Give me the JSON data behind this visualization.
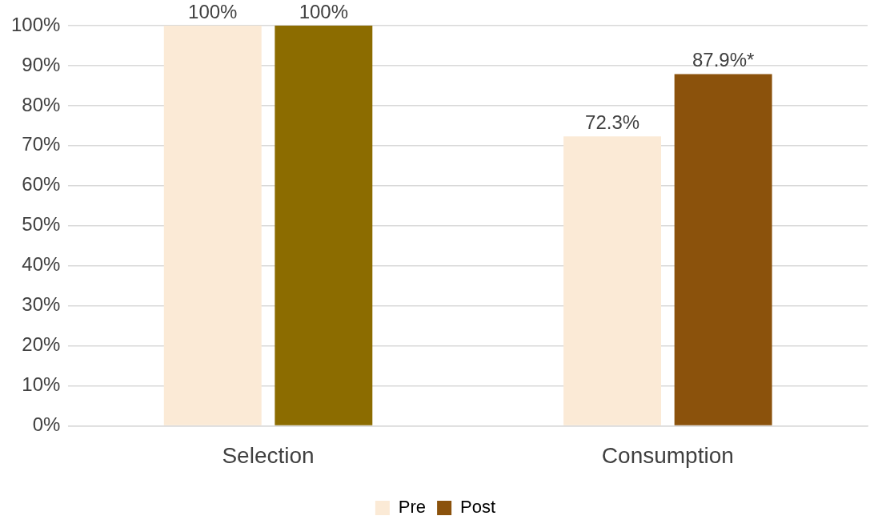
{
  "chart_data": {
    "type": "bar",
    "categories": [
      "Selection",
      "Consumption"
    ],
    "series": [
      {
        "name": "Pre",
        "color": "#fbead6",
        "values": [
          100,
          72.3
        ],
        "value_labels": [
          "100%",
          "72.3%"
        ]
      },
      {
        "name": "Post",
        "color": "#8b520c",
        "colors": [
          "#8c6c00",
          "#8b520c"
        ],
        "values": [
          100,
          87.9
        ],
        "value_labels": [
          "100%",
          "87.9%*"
        ]
      }
    ],
    "ylim": [
      0,
      100
    ],
    "yticks": [
      {
        "value": 0,
        "label": "0%"
      },
      {
        "value": 10,
        "label": "10%"
      },
      {
        "value": 20,
        "label": "20%"
      },
      {
        "value": 30,
        "label": "30%"
      },
      {
        "value": 40,
        "label": "40%"
      },
      {
        "value": 50,
        "label": "50%"
      },
      {
        "value": 60,
        "label": "60%"
      },
      {
        "value": 70,
        "label": "70%"
      },
      {
        "value": 80,
        "label": "80%"
      },
      {
        "value": 90,
        "label": "90%"
      },
      {
        "value": 100,
        "label": "100%"
      }
    ],
    "grid": "y",
    "legend": "bottom"
  }
}
